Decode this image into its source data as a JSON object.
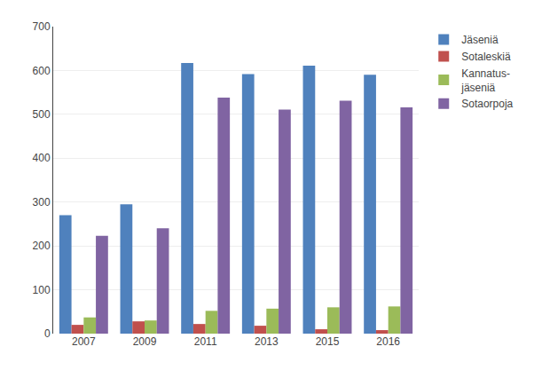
{
  "chart_data": {
    "type": "bar",
    "categories": [
      "2007",
      "2009",
      "2011",
      "2013",
      "2015",
      "2016"
    ],
    "series": [
      {
        "name": "Jäseniä",
        "color": "#4F81BD",
        "values": [
          270,
          295,
          617,
          592,
          611,
          590
        ]
      },
      {
        "name": "Sotaleskiä",
        "color": "#C0504D",
        "values": [
          20,
          28,
          22,
          18,
          10,
          8
        ]
      },
      {
        "name": "Kannatus-\njäseniä",
        "color": "#9BBB59",
        "values": [
          37,
          30,
          52,
          57,
          60,
          62
        ]
      },
      {
        "name": "Sotaorpoja",
        "color": "#8064A2",
        "values": [
          223,
          240,
          538,
          511,
          531,
          516
        ]
      }
    ],
    "ylim": [
      0,
      700
    ],
    "yticks": [
      0,
      100,
      200,
      300,
      400,
      500,
      600,
      700
    ],
    "grid": true,
    "legend": "upper right"
  }
}
